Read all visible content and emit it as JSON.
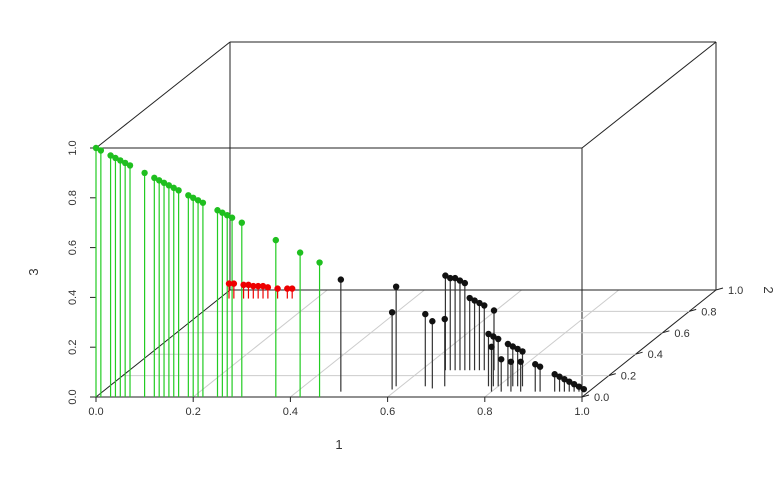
{
  "chart_data": {
    "type": "scatter3d-histogram",
    "xlabel": "1",
    "ylabel": "2",
    "zlabel": "3",
    "x_ticks": [
      "0.0",
      "0.2",
      "0.4",
      "0.6",
      "0.8",
      "1.0"
    ],
    "y_ticks": [
      "0.0",
      "0.2",
      "0.4",
      "0.6",
      "0.8",
      "1.0"
    ],
    "z_ticks": [
      "0.0",
      "0.2",
      "0.4",
      "0.6",
      "0.8",
      "1.0"
    ],
    "xlim": [
      0,
      1
    ],
    "ylim": [
      0,
      1
    ],
    "zlim": [
      0,
      1
    ],
    "grid": true,
    "colors": {
      "green": "#1fbf1f",
      "red": "#ee0000",
      "black": "#111111",
      "stem_green": "#22cc22",
      "stem_black": "#333333",
      "grid": "#cccccc",
      "box": "#222222"
    },
    "series": [
      {
        "color": "green",
        "points": [
          [
            0.0,
            0.0,
            1.0
          ],
          [
            0.01,
            0.0,
            0.99
          ],
          [
            0.03,
            0.0,
            0.97
          ],
          [
            0.04,
            0.0,
            0.96
          ],
          [
            0.05,
            0.0,
            0.95
          ],
          [
            0.06,
            0.0,
            0.94
          ],
          [
            0.07,
            0.0,
            0.93
          ],
          [
            0.1,
            0.0,
            0.9
          ],
          [
            0.12,
            0.0,
            0.88
          ],
          [
            0.13,
            0.0,
            0.87
          ],
          [
            0.14,
            0.0,
            0.86
          ],
          [
            0.15,
            0.0,
            0.85
          ],
          [
            0.16,
            0.0,
            0.84
          ],
          [
            0.17,
            0.0,
            0.83
          ],
          [
            0.19,
            0.0,
            0.81
          ],
          [
            0.2,
            0.0,
            0.8
          ],
          [
            0.21,
            0.0,
            0.79
          ],
          [
            0.22,
            0.0,
            0.78
          ],
          [
            0.25,
            0.0,
            0.75
          ],
          [
            0.26,
            0.0,
            0.74
          ],
          [
            0.27,
            0.0,
            0.73
          ],
          [
            0.28,
            0.0,
            0.72
          ],
          [
            0.3,
            0.0,
            0.7
          ],
          [
            0.37,
            0.0,
            0.63
          ],
          [
            0.42,
            0.0,
            0.58
          ],
          [
            0.46,
            0.0,
            0.54
          ]
        ]
      },
      {
        "color": "red",
        "points": [
          [
            0.02,
            0.92,
            0.06
          ],
          [
            0.03,
            0.92,
            0.06
          ],
          [
            0.05,
            0.92,
            0.055
          ],
          [
            0.06,
            0.92,
            0.055
          ],
          [
            0.07,
            0.92,
            0.05
          ],
          [
            0.08,
            0.92,
            0.05
          ],
          [
            0.09,
            0.92,
            0.05
          ],
          [
            0.1,
            0.92,
            0.045
          ],
          [
            0.12,
            0.92,
            0.04
          ],
          [
            0.14,
            0.92,
            0.04
          ],
          [
            0.15,
            0.92,
            0.04
          ]
        ]
      },
      {
        "color": "black",
        "points": [
          [
            0.49,
            0.05,
            0.45
          ],
          [
            0.59,
            0.1,
            0.4
          ],
          [
            0.59,
            0.07,
            0.31
          ],
          [
            0.65,
            0.25,
            0.38
          ],
          [
            0.66,
            0.25,
            0.37
          ],
          [
            0.67,
            0.25,
            0.37
          ],
          [
            0.68,
            0.25,
            0.36
          ],
          [
            0.69,
            0.25,
            0.35
          ],
          [
            0.65,
            0.1,
            0.29
          ],
          [
            0.67,
            0.08,
            0.27
          ],
          [
            0.69,
            0.1,
            0.27
          ],
          [
            0.7,
            0.25,
            0.29
          ],
          [
            0.71,
            0.25,
            0.28
          ],
          [
            0.72,
            0.25,
            0.27
          ],
          [
            0.73,
            0.25,
            0.26
          ],
          [
            0.75,
            0.25,
            0.24
          ],
          [
            0.78,
            0.1,
            0.21
          ],
          [
            0.79,
            0.1,
            0.2
          ],
          [
            0.8,
            0.1,
            0.19
          ],
          [
            0.8,
            0.05,
            0.18
          ],
          [
            0.82,
            0.1,
            0.17
          ],
          [
            0.83,
            0.1,
            0.16
          ],
          [
            0.84,
            0.1,
            0.15
          ],
          [
            0.85,
            0.1,
            0.14
          ],
          [
            0.82,
            0.05,
            0.13
          ],
          [
            0.84,
            0.05,
            0.12
          ],
          [
            0.86,
            0.05,
            0.12
          ],
          [
            0.89,
            0.05,
            0.11
          ],
          [
            0.9,
            0.05,
            0.1
          ],
          [
            0.93,
            0.05,
            0.07
          ],
          [
            0.94,
            0.05,
            0.06
          ],
          [
            0.95,
            0.05,
            0.05
          ],
          [
            0.96,
            0.05,
            0.04
          ],
          [
            0.97,
            0.05,
            0.03
          ],
          [
            0.98,
            0.05,
            0.02
          ],
          [
            0.99,
            0.05,
            0.01
          ]
        ]
      }
    ]
  }
}
